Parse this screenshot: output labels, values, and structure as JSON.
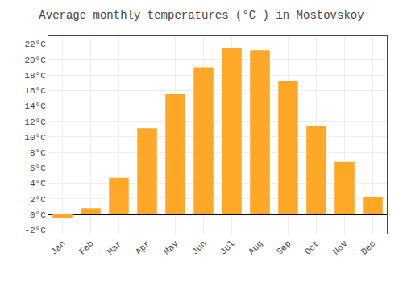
{
  "chart_data": {
    "type": "bar",
    "title": "Average monthly temperatures (°C ) in Mostovskoy",
    "categories": [
      "Jan",
      "Feb",
      "Mar",
      "Apr",
      "May",
      "Jun",
      "Jul",
      "Aug",
      "Sep",
      "Oct",
      "Nov",
      "Dec"
    ],
    "values": [
      -0.5,
      0.8,
      4.7,
      11.1,
      15.5,
      19.0,
      21.5,
      21.2,
      17.2,
      11.4,
      6.8,
      2.2
    ],
    "color": "#FFA726",
    "ylim": [
      -2.5,
      23
    ],
    "yticks": [
      {
        "value": -2,
        "label": "-2°C"
      },
      {
        "value": 0,
        "label": "0°C"
      },
      {
        "value": 2,
        "label": "2°C"
      },
      {
        "value": 4,
        "label": "4°C"
      },
      {
        "value": 6,
        "label": "6°C"
      },
      {
        "value": 8,
        "label": "8°C"
      },
      {
        "value": 10,
        "label": "10°C"
      },
      {
        "value": 12,
        "label": "12°C"
      },
      {
        "value": 14,
        "label": "14°C"
      },
      {
        "value": 16,
        "label": "16°C"
      },
      {
        "value": 18,
        "label": "18°C"
      },
      {
        "value": 20,
        "label": "20°C"
      },
      {
        "value": 22,
        "label": "22°C"
      }
    ],
    "grid": true
  }
}
